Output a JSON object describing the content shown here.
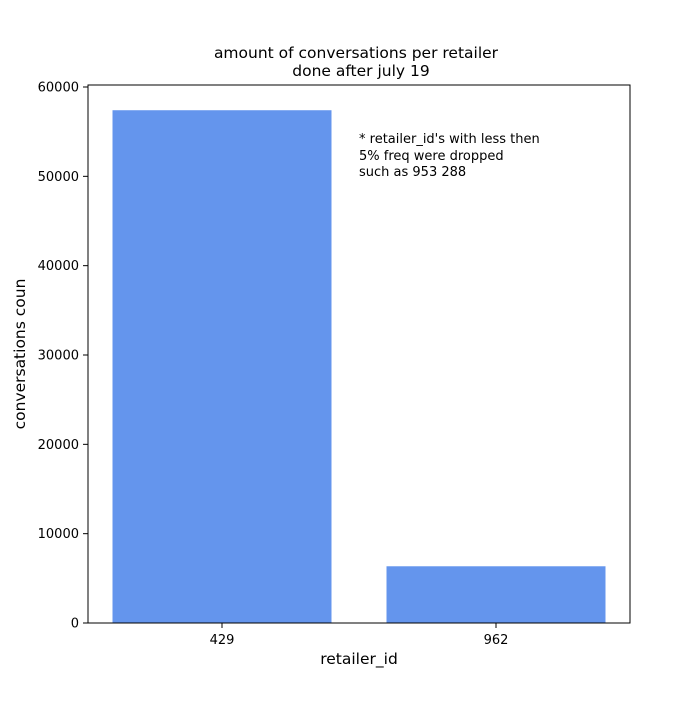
{
  "chart_data": {
    "type": "bar",
    "title_lines": [
      "amount of conversations per retailer",
      "done after july 19"
    ],
    "xlabel": "retailer_id",
    "ylabel": "conversations coun",
    "categories": [
      "429",
      "962"
    ],
    "values": [
      57400,
      6350
    ],
    "ylim": [
      0,
      60000
    ],
    "yticks": [
      0,
      10000,
      20000,
      30000,
      40000,
      50000,
      60000
    ],
    "ytick_labels": [
      "0",
      "10000",
      "20000",
      "30000",
      "40000",
      "50000",
      "60000"
    ],
    "annotation_lines": [
      "* retailer_id's with less then",
      "5% freq were dropped",
      "such as 953 288"
    ],
    "bar_color": "#6495ED",
    "grid": false,
    "legend": "none"
  }
}
